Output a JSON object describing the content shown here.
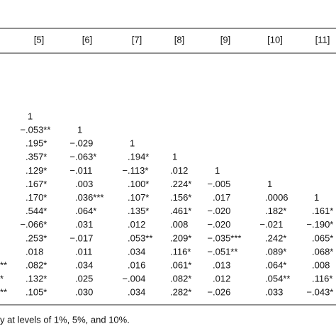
{
  "table": {
    "header": [
      "[5]",
      "[6]",
      "[7]",
      "[8]",
      "[9]",
      "[10]",
      "[11]"
    ],
    "rows": [
      {
        "cells": [
          "1"
        ]
      },
      {
        "cells": [
          "−.053**",
          "1"
        ]
      },
      {
        "cells": [
          ".195*",
          "−.029",
          "1"
        ]
      },
      {
        "cells": [
          ".357*",
          "−.063*",
          ".194*",
          "1"
        ]
      },
      {
        "cells": [
          ".129*",
          "−.011",
          "−.113*",
          ".012",
          "1"
        ]
      },
      {
        "cells": [
          ".167*",
          ".003",
          ".100*",
          ".224*",
          "−.005",
          "1"
        ]
      },
      {
        "cells": [
          ".170*",
          ".036***",
          ".107*",
          ".156*",
          ".017",
          ".0006",
          "1"
        ]
      },
      {
        "cells": [
          ".544*",
          ".064*",
          ".135*",
          ".461*",
          "−.020",
          ".182*",
          ".161*"
        ]
      },
      {
        "cells": [
          "−.066*",
          ".031",
          ".012",
          ".008",
          "−.020",
          "−.021",
          "−.190*"
        ]
      },
      {
        "cells": [
          ".253*",
          "−.017",
          ".053**",
          ".209*",
          "−.035***",
          ".242*",
          ".065*"
        ]
      },
      {
        "cells": [
          ".018",
          ".011",
          ".034",
          ".116*",
          "−.051**",
          ".089*",
          ".068*"
        ]
      },
      {
        "lead": "**",
        "cells": [
          ".082*",
          ".034",
          ".016",
          ".061*",
          ".013",
          ".064*",
          ".008"
        ]
      },
      {
        "lead": "*",
        "cells": [
          ".132*",
          ".025",
          "−.004",
          ".082*",
          ".012",
          ".054**",
          ".116*"
        ]
      },
      {
        "lead": "**",
        "cells": [
          ".105*",
          ".030",
          ".034",
          ".282*",
          "−.026",
          ".033",
          "−.043*"
        ]
      }
    ],
    "footnote": "y at levels of 1%, 5%, and 10%."
  }
}
